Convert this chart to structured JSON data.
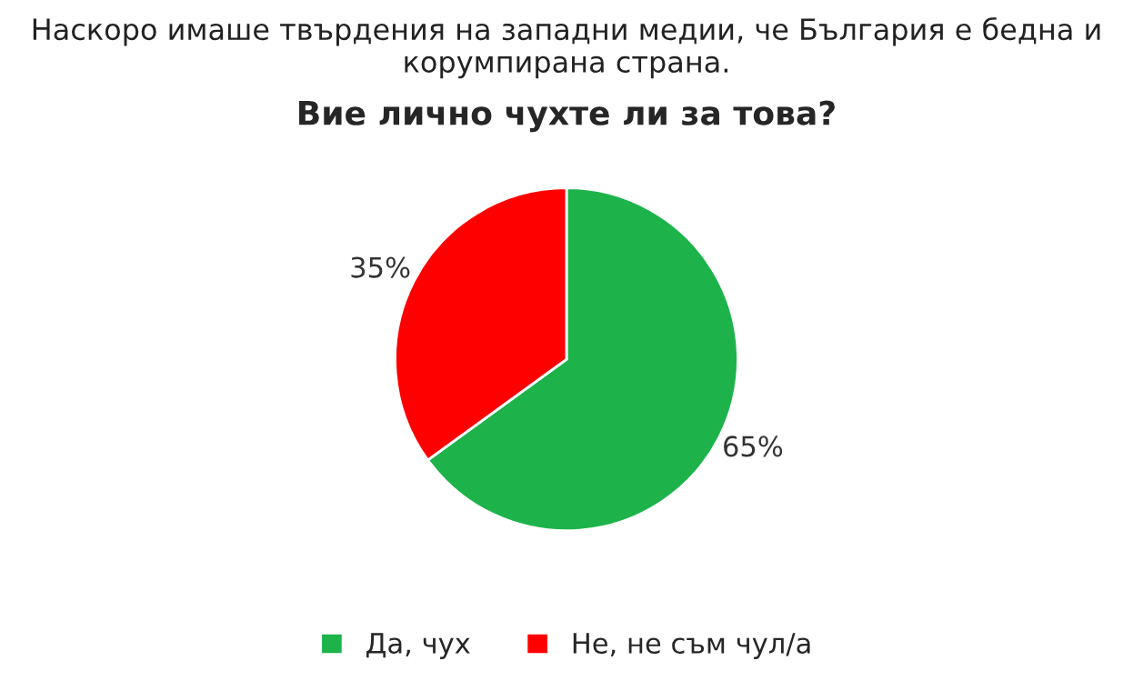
{
  "chart_data": {
    "type": "pie",
    "title": "Наскоро имаше твърдения на западни медии, че България е бедна и корумпирана страна.",
    "subtitle": "Вие лично чухте ли за това?",
    "categories": [
      "Да, чух",
      "Не, не съм чул/а"
    ],
    "values": [
      65,
      35
    ],
    "colors": [
      "#1db34a",
      "#ff0000"
    ],
    "value_labels": [
      "65%",
      "35%"
    ],
    "legend": "bottom"
  }
}
